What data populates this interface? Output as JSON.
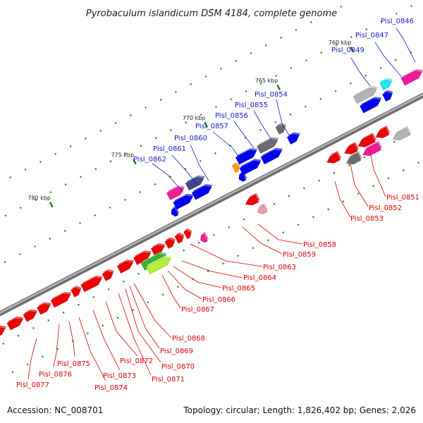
{
  "title": "Pyrobaculum islandicum DSM 4184, complete genome",
  "footer": {
    "accession": "Accession: NC_008701",
    "summary": "Topology: circular; Length: 1,826,402 bp; Genes: 2,026"
  },
  "ticks": [
    "760 kbp",
    "765 kbp",
    "770 kbp",
    "775 kbp",
    "780 kbp"
  ],
  "colors": {
    "upper_label": "#1a1acc",
    "lower_label": "#dd0000",
    "backbone": "#8c8c8c",
    "red": "#ee0000",
    "blue": "#0000ee",
    "magenta": "#ee1e9a",
    "grey": "#b4b4b4",
    "darkgrey": "#6c6c6c",
    "cyan": "#22e8ee",
    "orange": "#ff9a10",
    "navy": "#46468a",
    "green": "#37b337",
    "lime": "#b8ef3a",
    "pink": "#ee9aa8",
    "tickmark": "#1e7a1e"
  },
  "upper_genes": [
    {
      "label": "Pisl_0846"
    },
    {
      "label": "Pisl_0847"
    },
    {
      "label": "Pisl_0849"
    },
    {
      "label": "Pisl_0854"
    },
    {
      "label": "Pisl_0855"
    },
    {
      "label": "Pisl_0856"
    },
    {
      "label": "Pisl_0857"
    },
    {
      "label": "Pisl_0860"
    },
    {
      "label": "Pisl_0861"
    },
    {
      "label": "Pisl_0862"
    }
  ],
  "lower_genes": [
    {
      "label": "Pisl_0851"
    },
    {
      "label": "Pisl_0852"
    },
    {
      "label": "Pisl_0853"
    },
    {
      "label": "Pisl_0858"
    },
    {
      "label": "Pisl_0859"
    },
    {
      "label": "Pisl_0863"
    },
    {
      "label": "Pisl_0864"
    },
    {
      "label": "Pisl_0865"
    },
    {
      "label": "Pisl_0866"
    },
    {
      "label": "Pisl_0867"
    },
    {
      "label": "Pisl_0868"
    },
    {
      "label": "Pisl_0869"
    },
    {
      "label": "Pisl_0870"
    },
    {
      "label": "Pisl_0871"
    },
    {
      "label": "Pisl_0872"
    },
    {
      "label": "Pisl_0873"
    },
    {
      "label": "Pisl_0874"
    },
    {
      "label": "Pisl_0875"
    },
    {
      "label": "Pisl_0876"
    },
    {
      "label": "Pisl_0877"
    }
  ]
}
